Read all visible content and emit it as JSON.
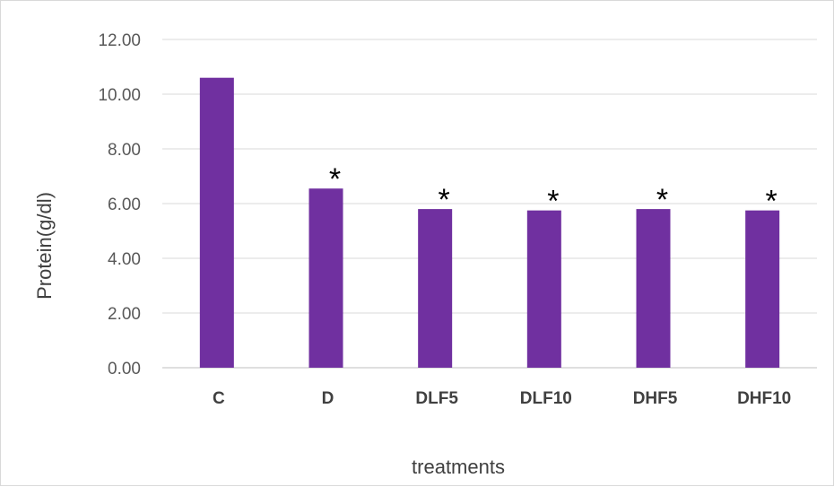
{
  "chart_data": {
    "type": "bar",
    "title": "",
    "xlabel": "treatments",
    "ylabel": "Protein(g/dl)",
    "categories": [
      "C",
      "D",
      "DLF5",
      "DLF10",
      "DHF5",
      "DHF10"
    ],
    "values": [
      10.6,
      6.55,
      5.8,
      5.75,
      5.8,
      5.75
    ],
    "annotations": [
      "",
      "*",
      "*",
      "*",
      "*",
      "*"
    ],
    "ylim": [
      0,
      12
    ],
    "yticks": [
      "0.00",
      "2.00",
      "4.00",
      "6.00",
      "8.00",
      "10.00",
      "12.00"
    ],
    "grid": true,
    "legend": "none",
    "bar_color": "#7030a0"
  }
}
